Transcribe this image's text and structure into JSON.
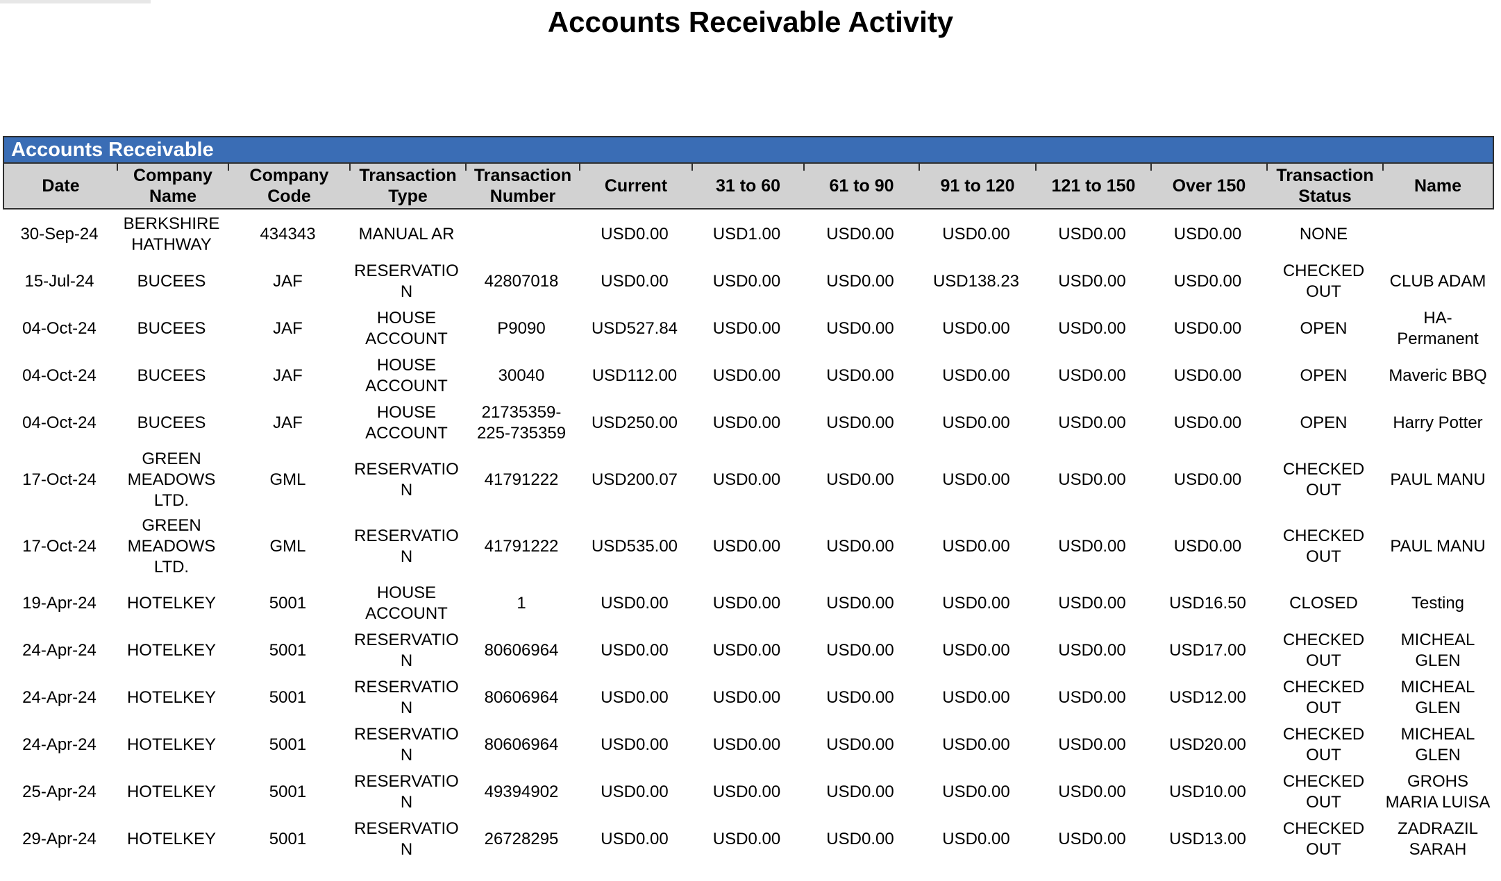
{
  "page_title": "Accounts Receivable Activity",
  "table": {
    "section_title": "Accounts Receivable",
    "columns": [
      "Date",
      "Company Name",
      "Company Code",
      "Transaction Type",
      "Transaction Number",
      "Current",
      "31 to 60",
      "61 to 90",
      "91 to 120",
      "121 to 150",
      "Over 150",
      "Transaction Status",
      "Name"
    ],
    "rows": [
      [
        "30-Sep-24",
        "BERKSHIRE HATHWAY",
        "434343",
        "MANUAL AR",
        "",
        "USD0.00",
        "USD1.00",
        "USD0.00",
        "USD0.00",
        "USD0.00",
        "USD0.00",
        "NONE",
        ""
      ],
      [
        "15-Jul-24",
        "BUCEES",
        "JAF",
        "RESERVATION",
        "42807018",
        "USD0.00",
        "USD0.00",
        "USD0.00",
        "USD138.23",
        "USD0.00",
        "USD0.00",
        "CHECKED OUT",
        "CLUB ADAM"
      ],
      [
        "04-Oct-24",
        "BUCEES",
        "JAF",
        "HOUSE ACCOUNT",
        "P9090",
        "USD527.84",
        "USD0.00",
        "USD0.00",
        "USD0.00",
        "USD0.00",
        "USD0.00",
        "OPEN",
        "HA-Permanent"
      ],
      [
        "04-Oct-24",
        "BUCEES",
        "JAF",
        "HOUSE ACCOUNT",
        "30040",
        "USD112.00",
        "USD0.00",
        "USD0.00",
        "USD0.00",
        "USD0.00",
        "USD0.00",
        "OPEN",
        "Maveric BBQ"
      ],
      [
        "04-Oct-24",
        "BUCEES",
        "JAF",
        "HOUSE ACCOUNT",
        "21735359-225-735359",
        "USD250.00",
        "USD0.00",
        "USD0.00",
        "USD0.00",
        "USD0.00",
        "USD0.00",
        "OPEN",
        "Harry Potter"
      ],
      [
        "17-Oct-24",
        "GREEN MEADOWS LTD.",
        "GML",
        "RESERVATION",
        "41791222",
        "USD200.07",
        "USD0.00",
        "USD0.00",
        "USD0.00",
        "USD0.00",
        "USD0.00",
        "CHECKED OUT",
        "PAUL MANU"
      ],
      [
        "17-Oct-24",
        "GREEN MEADOWS LTD.",
        "GML",
        "RESERVATION",
        "41791222",
        "USD535.00",
        "USD0.00",
        "USD0.00",
        "USD0.00",
        "USD0.00",
        "USD0.00",
        "CHECKED OUT",
        "PAUL MANU"
      ],
      [
        "19-Apr-24",
        "HOTELKEY",
        "5001",
        "HOUSE ACCOUNT",
        "1",
        "USD0.00",
        "USD0.00",
        "USD0.00",
        "USD0.00",
        "USD0.00",
        "USD16.50",
        "CLOSED",
        "Testing"
      ],
      [
        "24-Apr-24",
        "HOTELKEY",
        "5001",
        "RESERVATION",
        "80606964",
        "USD0.00",
        "USD0.00",
        "USD0.00",
        "USD0.00",
        "USD0.00",
        "USD17.00",
        "CHECKED OUT",
        "MICHEAL GLEN"
      ],
      [
        "24-Apr-24",
        "HOTELKEY",
        "5001",
        "RESERVATION",
        "80606964",
        "USD0.00",
        "USD0.00",
        "USD0.00",
        "USD0.00",
        "USD0.00",
        "USD12.00",
        "CHECKED OUT",
        "MICHEAL GLEN"
      ],
      [
        "24-Apr-24",
        "HOTELKEY",
        "5001",
        "RESERVATION",
        "80606964",
        "USD0.00",
        "USD0.00",
        "USD0.00",
        "USD0.00",
        "USD0.00",
        "USD20.00",
        "CHECKED OUT",
        "MICHEAL GLEN"
      ],
      [
        "25-Apr-24",
        "HOTELKEY",
        "5001",
        "RESERVATION",
        "49394902",
        "USD0.00",
        "USD0.00",
        "USD0.00",
        "USD0.00",
        "USD0.00",
        "USD10.00",
        "CHECKED OUT",
        "GROHS MARIA LUISA"
      ],
      [
        "29-Apr-24",
        "HOTELKEY",
        "5001",
        "RESERVATION",
        "26728295",
        "USD0.00",
        "USD0.00",
        "USD0.00",
        "USD0.00",
        "USD0.00",
        "USD13.00",
        "CHECKED OUT",
        "ZADRAZIL SARAH"
      ]
    ]
  },
  "colors": {
    "section_bar_blue": "#3a6db5",
    "column_header_gray": "#d2d2d2",
    "border_dark": "#2f2f2f"
  }
}
